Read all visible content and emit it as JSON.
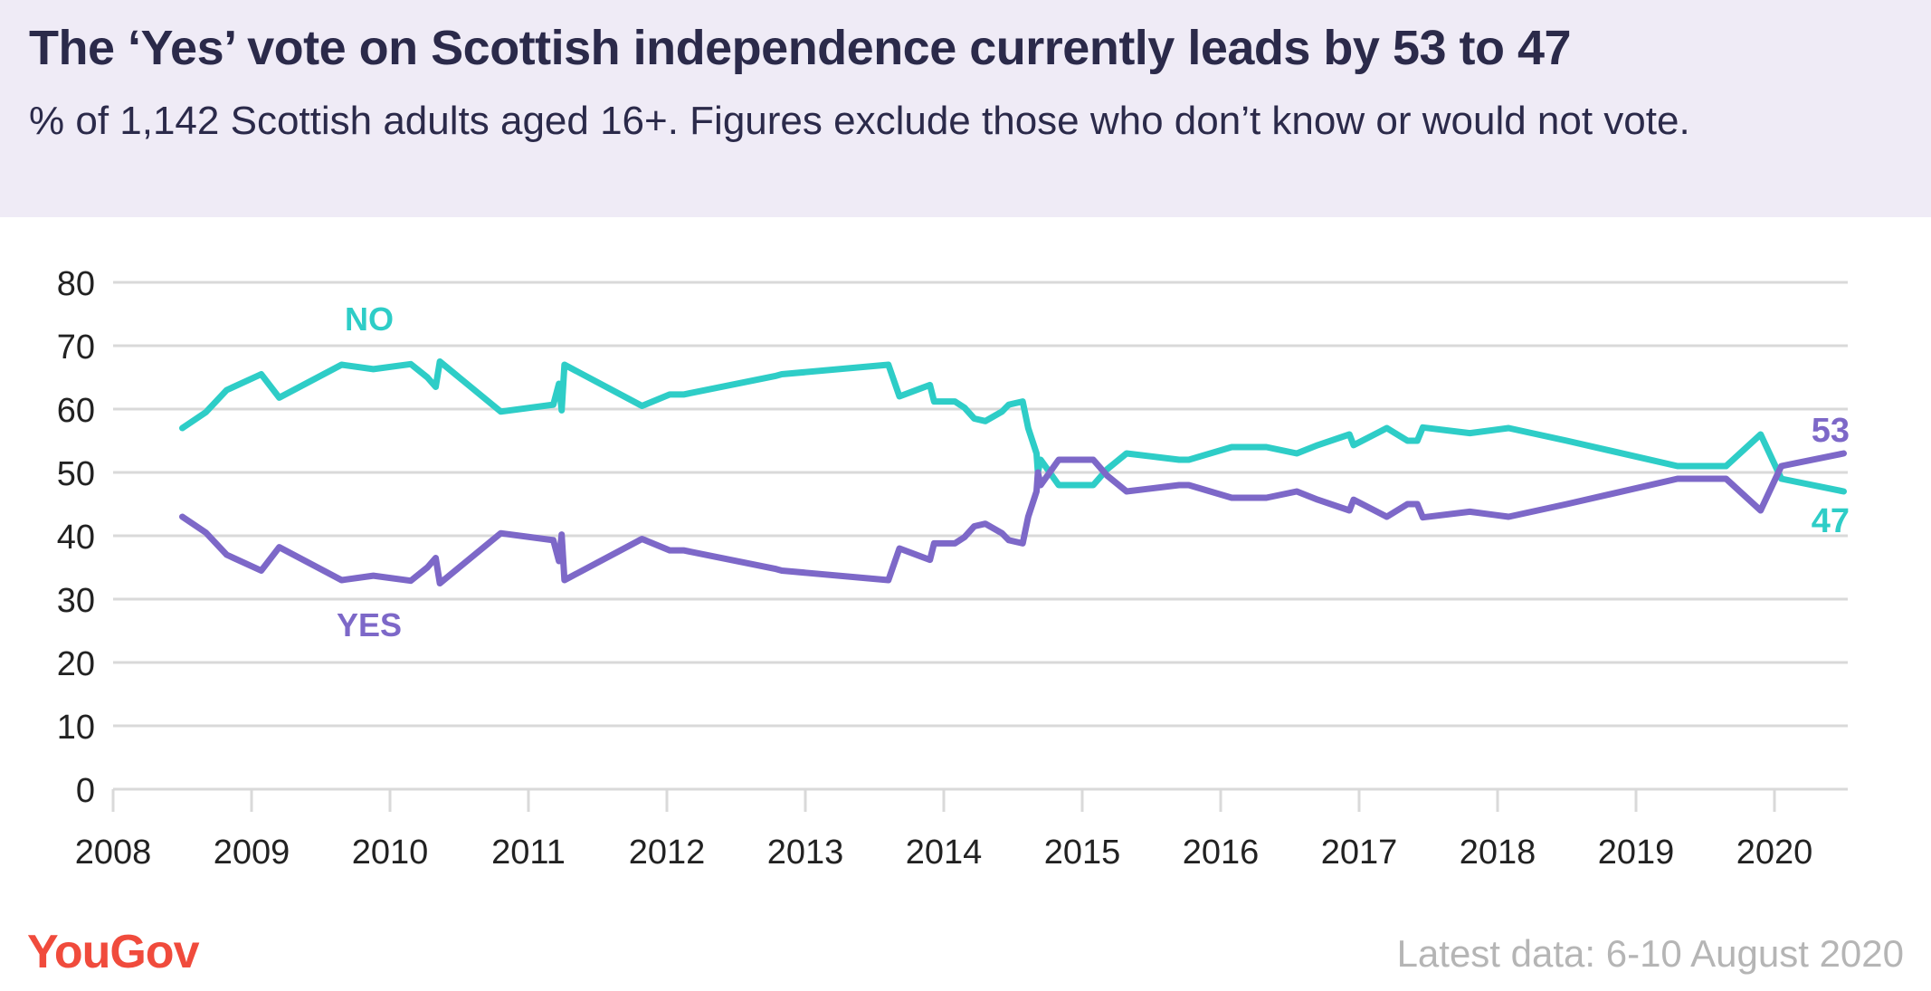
{
  "header": {
    "title": "The ‘Yes’ vote on Scottish independence currently leads by 53 to 47",
    "subtitle": "% of 1,142 Scottish adults aged 16+. Figures exclude those who don’t know or would not vote."
  },
  "footer": {
    "logo": "YouGov",
    "latest": "Latest data: 6-10 August 2020"
  },
  "colors": {
    "no": "#2ecdc7",
    "yes": "#7d68c8",
    "grid": "#d9d9d9",
    "header_bg": "#efebf6",
    "logo": "#f04b3c"
  },
  "chart_data": {
    "type": "line",
    "title": "The ‘Yes’ vote on Scottish independence currently leads by 53 to 47",
    "xlim": [
      2008,
      2020.5
    ],
    "ylim": [
      0,
      80
    ],
    "yticks": [
      "0",
      "10",
      "20",
      "30",
      "40",
      "50",
      "60",
      "70",
      "80"
    ],
    "xticks": [
      "2008",
      "2009",
      "2010",
      "2011",
      "2012",
      "2013",
      "2014",
      "2015",
      "2016",
      "2017",
      "2018",
      "2019",
      "2020"
    ],
    "grid": true,
    "series": [
      {
        "name": "NO",
        "end_label": "47",
        "color": "#2ecdc7",
        "points": [
          [
            2008.5,
            57
          ],
          [
            2008.67,
            59.5
          ],
          [
            2008.82,
            63
          ],
          [
            2009.07,
            65.5
          ],
          [
            2009.2,
            61.8
          ],
          [
            2009.65,
            67
          ],
          [
            2009.88,
            66.3
          ],
          [
            2010.15,
            67.1
          ],
          [
            2010.27,
            65
          ],
          [
            2010.33,
            63.5
          ],
          [
            2010.36,
            67.5
          ],
          [
            2010.8,
            59.6
          ],
          [
            2011.18,
            60.7
          ],
          [
            2011.22,
            64
          ],
          [
            2011.24,
            59.8
          ],
          [
            2011.26,
            67
          ],
          [
            2011.82,
            60.5
          ],
          [
            2012.02,
            62.3
          ],
          [
            2012.12,
            62.3
          ],
          [
            2012.78,
            65.2
          ],
          [
            2012.83,
            65.5
          ],
          [
            2013.6,
            67
          ],
          [
            2013.68,
            62
          ],
          [
            2013.9,
            63.8
          ],
          [
            2013.93,
            61.2
          ],
          [
            2014.08,
            61.2
          ],
          [
            2014.15,
            60.2
          ],
          [
            2014.22,
            58.5
          ],
          [
            2014.3,
            58.1
          ],
          [
            2014.42,
            59.6
          ],
          [
            2014.47,
            60.7
          ],
          [
            2014.57,
            61.2
          ],
          [
            2014.61,
            57
          ],
          [
            2014.67,
            53
          ],
          [
            2014.68,
            50
          ],
          [
            2014.7,
            52
          ],
          [
            2014.83,
            48
          ],
          [
            2015.08,
            48
          ],
          [
            2015.18,
            50.5
          ],
          [
            2015.32,
            53
          ],
          [
            2015.7,
            52
          ],
          [
            2015.77,
            52
          ],
          [
            2016.08,
            54
          ],
          [
            2016.33,
            54
          ],
          [
            2016.55,
            53
          ],
          [
            2016.7,
            54.3
          ],
          [
            2016.93,
            56
          ],
          [
            2016.96,
            54.3
          ],
          [
            2017.2,
            57
          ],
          [
            2017.35,
            55
          ],
          [
            2017.42,
            55
          ],
          [
            2017.46,
            57.1
          ],
          [
            2017.8,
            56.2
          ],
          [
            2018.08,
            57
          ],
          [
            2018.5,
            55
          ],
          [
            2019.3,
            51
          ],
          [
            2019.65,
            51
          ],
          [
            2019.9,
            56
          ],
          [
            2020.05,
            49
          ],
          [
            2020.5,
            47
          ]
        ]
      },
      {
        "name": "YES",
        "end_label": "53",
        "color": "#7d68c8",
        "points": [
          [
            2008.5,
            43
          ],
          [
            2008.67,
            40.5
          ],
          [
            2008.82,
            37
          ],
          [
            2009.07,
            34.5
          ],
          [
            2009.2,
            38.2
          ],
          [
            2009.65,
            33
          ],
          [
            2009.88,
            33.7
          ],
          [
            2010.15,
            32.9
          ],
          [
            2010.27,
            35
          ],
          [
            2010.33,
            36.5
          ],
          [
            2010.36,
            32.5
          ],
          [
            2010.8,
            40.4
          ],
          [
            2011.18,
            39.3
          ],
          [
            2011.22,
            36
          ],
          [
            2011.24,
            40.2
          ],
          [
            2011.26,
            33
          ],
          [
            2011.82,
            39.5
          ],
          [
            2012.02,
            37.7
          ],
          [
            2012.12,
            37.7
          ],
          [
            2012.78,
            34.8
          ],
          [
            2012.83,
            34.5
          ],
          [
            2013.6,
            33
          ],
          [
            2013.68,
            38
          ],
          [
            2013.9,
            36.2
          ],
          [
            2013.93,
            38.8
          ],
          [
            2014.08,
            38.8
          ],
          [
            2014.15,
            39.8
          ],
          [
            2014.22,
            41.5
          ],
          [
            2014.3,
            41.9
          ],
          [
            2014.42,
            40.4
          ],
          [
            2014.47,
            39.3
          ],
          [
            2014.57,
            38.8
          ],
          [
            2014.61,
            43
          ],
          [
            2014.67,
            47
          ],
          [
            2014.68,
            50
          ],
          [
            2014.7,
            48
          ],
          [
            2014.83,
            52
          ],
          [
            2015.08,
            52
          ],
          [
            2015.18,
            49.5
          ],
          [
            2015.32,
            47
          ],
          [
            2015.7,
            48
          ],
          [
            2015.77,
            48
          ],
          [
            2016.08,
            46
          ],
          [
            2016.33,
            46
          ],
          [
            2016.55,
            47
          ],
          [
            2016.7,
            45.7
          ],
          [
            2016.93,
            44
          ],
          [
            2016.96,
            45.7
          ],
          [
            2017.2,
            43
          ],
          [
            2017.35,
            45
          ],
          [
            2017.42,
            45
          ],
          [
            2017.46,
            42.9
          ],
          [
            2017.8,
            43.8
          ],
          [
            2018.08,
            43
          ],
          [
            2018.5,
            45
          ],
          [
            2019.3,
            49
          ],
          [
            2019.65,
            49
          ],
          [
            2019.9,
            44
          ],
          [
            2020.05,
            51
          ],
          [
            2020.5,
            53
          ]
        ]
      }
    ]
  }
}
